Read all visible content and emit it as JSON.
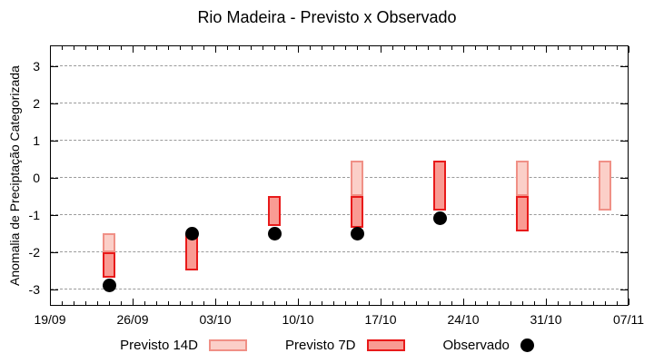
{
  "chart_data": {
    "type": "bar",
    "title": "Rio Madeira - Previsto x Observado",
    "ylabel": "Anomalia de Preciptação Categorizada",
    "xlabel": "",
    "x_tick_labels": [
      "19/09",
      "26/09",
      "03/10",
      "10/10",
      "17/10",
      "24/10",
      "31/10",
      "07/11"
    ],
    "y_ticks": [
      -3,
      -2,
      -1,
      0,
      1,
      2,
      3
    ],
    "ylim": [
      -3.45,
      3.55
    ],
    "xlim_dates": [
      "19/09",
      "07/11"
    ],
    "grid": "horizontal-dashed",
    "legend_position": "bottom-center",
    "colors": {
      "previsto_14d_fill": "#fbcfc8",
      "previsto_14d_border": "#f09086",
      "previsto_7d_fill": "#f99b93",
      "previsto_7d_border": "#e81a1a",
      "observado": "#000000",
      "grid": "#9a9a9a"
    },
    "series": [
      {
        "name": "Previsto 14D",
        "type": "range-bar",
        "points": [
          {
            "date": "24/09",
            "low": -2.0,
            "high": -1.5
          },
          {
            "date": "15/10",
            "low": -0.5,
            "high": 0.45
          },
          {
            "date": "29/10",
            "low": -0.5,
            "high": 0.45
          },
          {
            "date": "05/11",
            "low": -0.9,
            "high": 0.45
          }
        ]
      },
      {
        "name": "Previsto 7D",
        "type": "range-bar",
        "points": [
          {
            "date": "24/09",
            "low": -2.7,
            "high": -2.0
          },
          {
            "date": "01/10",
            "low": -2.5,
            "high": -1.5
          },
          {
            "date": "08/10",
            "low": -1.3,
            "high": -0.5
          },
          {
            "date": "15/10",
            "low": -1.35,
            "high": -0.5
          },
          {
            "date": "22/10",
            "low": -0.9,
            "high": 0.45
          },
          {
            "date": "29/10",
            "low": -1.45,
            "high": -0.5
          }
        ]
      },
      {
        "name": "Observado",
        "type": "scatter",
        "points": [
          {
            "date": "24/09",
            "value": -2.9
          },
          {
            "date": "01/10",
            "value": -1.5
          },
          {
            "date": "08/10",
            "value": -1.5
          },
          {
            "date": "15/10",
            "value": -1.5
          },
          {
            "date": "22/10",
            "value": -1.1
          }
        ]
      }
    ]
  }
}
